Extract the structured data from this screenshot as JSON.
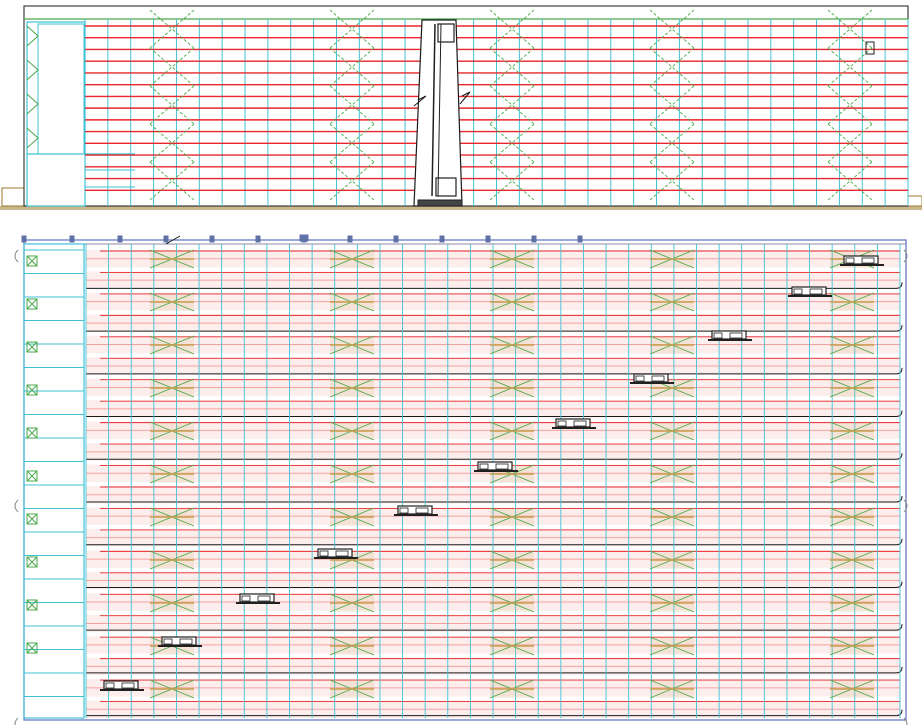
{
  "drawing": {
    "views": [
      "elevation",
      "plan"
    ],
    "colors": {
      "beam": "#e8262c",
      "beam_light": "#f5a0a0",
      "column": "#3fc1d4",
      "bracing": "#4aa84a",
      "bracing_alt": "#c8a050",
      "ground": "#9c7a2c",
      "outline": "#1a1a1a",
      "machine": "#202020",
      "grid_blue": "#6f8fd8"
    },
    "elevation": {
      "beam_levels": 15,
      "bay_columns": 36,
      "braced_bays": 6,
      "stacker_crane_count": 1
    },
    "plan": {
      "aisles": 11,
      "rack_rows": 22,
      "stacker_crane_count": 11,
      "braced_bay_positions": 5
    },
    "icons": [
      "stacker-crane-icon",
      "column-marker-icon",
      "bracing-cross-icon"
    ]
  }
}
